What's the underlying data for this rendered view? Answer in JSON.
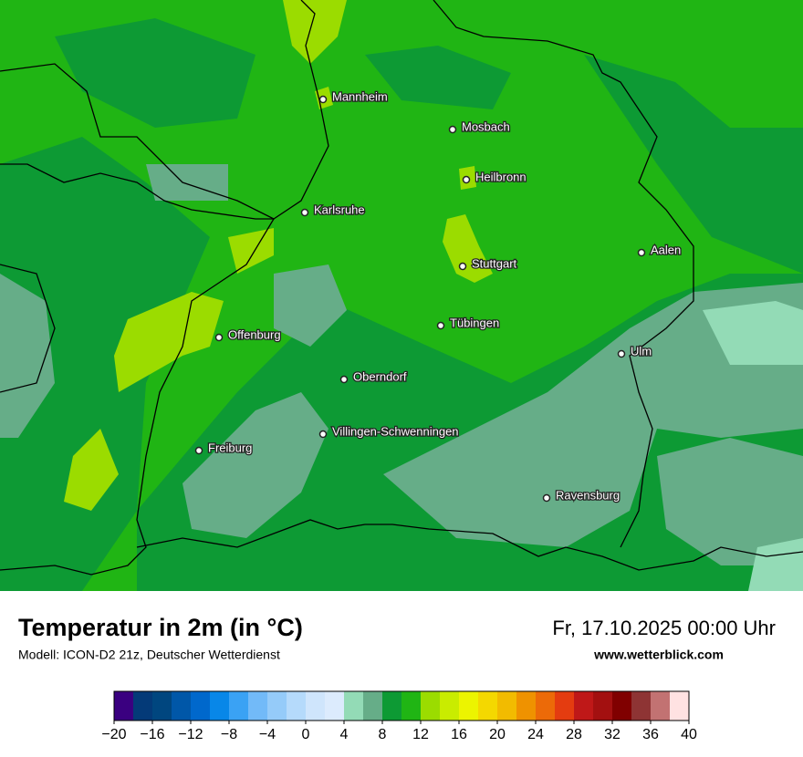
{
  "header": {
    "title": "Temperatur in 2m (in °C)",
    "subtitle": "Modell: ICON-D2 21z, Deutscher Wetterdienst",
    "date": "Fr, 17.10.2025 00:00 Uhr",
    "website": "www.wetterblick.com"
  },
  "cities": [
    "Mannheim",
    "Mosbach",
    "Heilbronn",
    "Karlsruhe",
    "Stuttgart",
    "Aalen",
    "Tübingen",
    "Offenburg",
    "Ulm",
    "Oberndorf",
    "Villingen-Schwenningen",
    "Freiburg",
    "Ravensburg"
  ],
  "legend": {
    "ticks": [
      {
        "value": -20,
        "label": "−20"
      },
      {
        "value": -16,
        "label": "−16"
      },
      {
        "value": -12,
        "label": "−12"
      },
      {
        "value": -8,
        "label": "−8"
      },
      {
        "value": -4,
        "label": "−4"
      },
      0,
      4,
      8,
      12,
      16,
      20,
      24,
      28,
      32,
      36,
      40
    ],
    "colors": [
      "#3a0080",
      "#043a78",
      "#00467f",
      "#0057a8",
      "#0068cc",
      "#0887e8",
      "#3aa2f4",
      "#72baf8",
      "#95cbf9",
      "#b5dafb",
      "#cfe5fc",
      "#dcebfd",
      "#93dbb6",
      "#66ad88",
      "#0d9a34",
      "#20b514",
      "#9bdc00",
      "#c9ec00",
      "#ecf400",
      "#f4d800",
      "#f2bb00",
      "#ef9200",
      "#ec6a08",
      "#e43c10",
      "#bf1818",
      "#a31010",
      "#800000",
      "#8e3434",
      "#c27272",
      "#f3b3b3",
      "#ffe2e2"
    ]
  }
}
